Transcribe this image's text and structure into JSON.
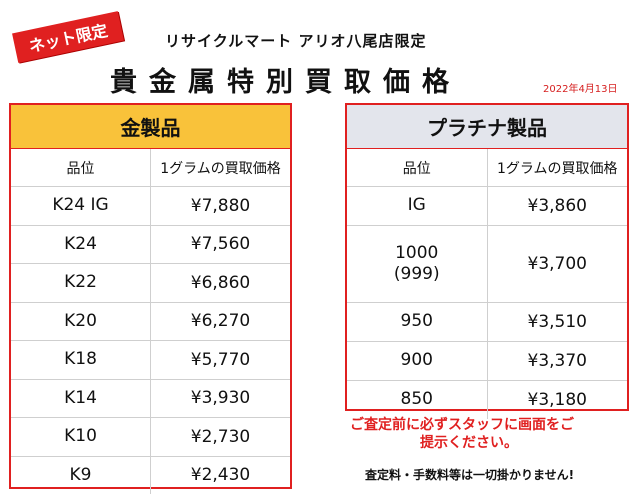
{
  "badge": "ネット限定",
  "store": "リサイクルマート アリオ八尾店限定",
  "title": "貴金属特別買取価格",
  "date": "2022年4月13日",
  "gold": {
    "heading": "金製品",
    "col_grade": "品位",
    "col_price": "1グラムの買取価格",
    "rows": [
      {
        "grade": "K24 IG",
        "price": "¥7,880"
      },
      {
        "grade": "K24",
        "price": "¥7,560"
      },
      {
        "grade": "K22",
        "price": "¥6,860"
      },
      {
        "grade": "K20",
        "price": "¥6,270"
      },
      {
        "grade": "K18",
        "price": "¥5,770"
      },
      {
        "grade": "K14",
        "price": "¥3,930"
      },
      {
        "grade": "K10",
        "price": "¥2,730"
      },
      {
        "grade": "K9",
        "price": "¥2,430"
      }
    ]
  },
  "platinum": {
    "heading": "プラチナ製品",
    "col_grade": "品位",
    "col_price": "1グラムの買取価格",
    "rows": [
      {
        "grade": "IG",
        "price": "¥3,860"
      },
      {
        "grade": "1000",
        "grade_sub": "(999)",
        "price": "¥3,700"
      },
      {
        "grade": "950",
        "price": "¥3,510"
      },
      {
        "grade": "900",
        "price": "¥3,370"
      },
      {
        "grade": "850",
        "price": "¥3,180"
      }
    ]
  },
  "notice_line1": "ご査定前に必ずスタッフに画面をご",
  "notice_line2": "提示ください。",
  "fee_note": "査定料・手数料等は一切掛かりません!"
}
